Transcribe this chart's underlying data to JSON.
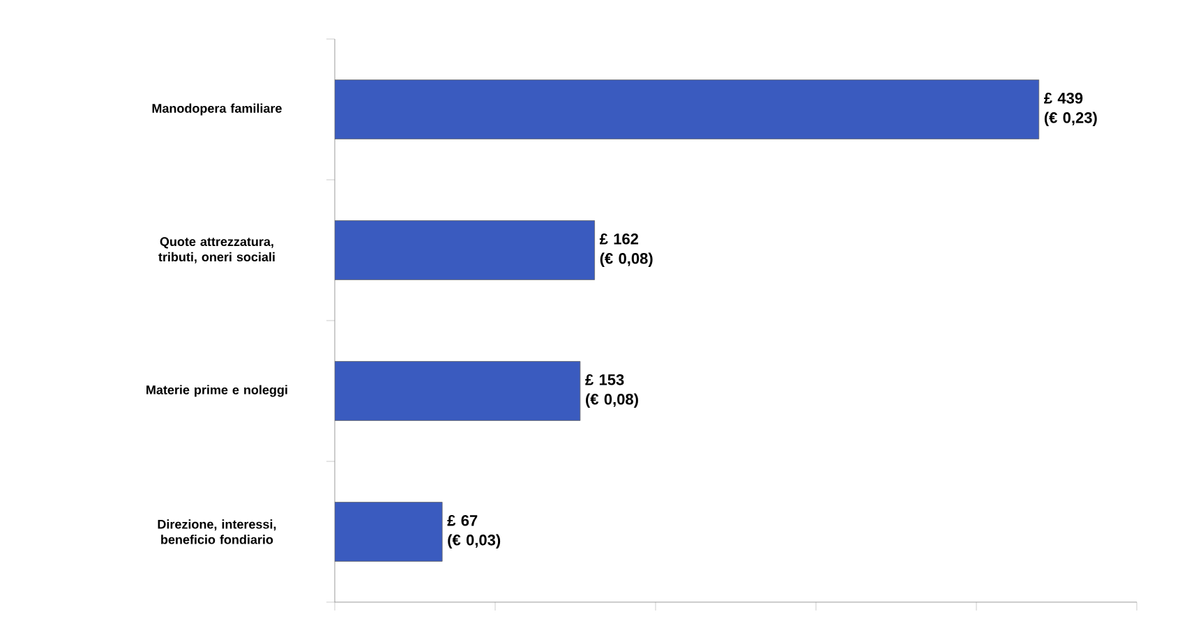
{
  "chart_data": {
    "type": "bar",
    "orientation": "horizontal",
    "categories": [
      "Manodopera familiare",
      "Quote attrezzatura, tributi, oneri sociali",
      "Materie prime e noleggi",
      "Direzione, interessi, beneficio fondiario"
    ],
    "values": [
      439,
      162,
      153,
      67
    ],
    "value_labels": [
      "£ 439 (€ 0,23)",
      "£ 162 (€ 0,08)",
      "£ 153 (€ 0,08)",
      "£ 67 (€ 0,03)"
    ],
    "color": "#3a5bbf",
    "xlim": [
      0,
      500
    ],
    "xticks": [
      {
        "value": 0,
        "label": null
      },
      {
        "value": 100,
        "label": null
      },
      {
        "value": 200,
        "label": null
      },
      {
        "value": 300,
        "label": null
      },
      {
        "value": 400,
        "label": null
      },
      {
        "value": 500,
        "label": null
      }
    ],
    "tick_labels": "y"
  }
}
